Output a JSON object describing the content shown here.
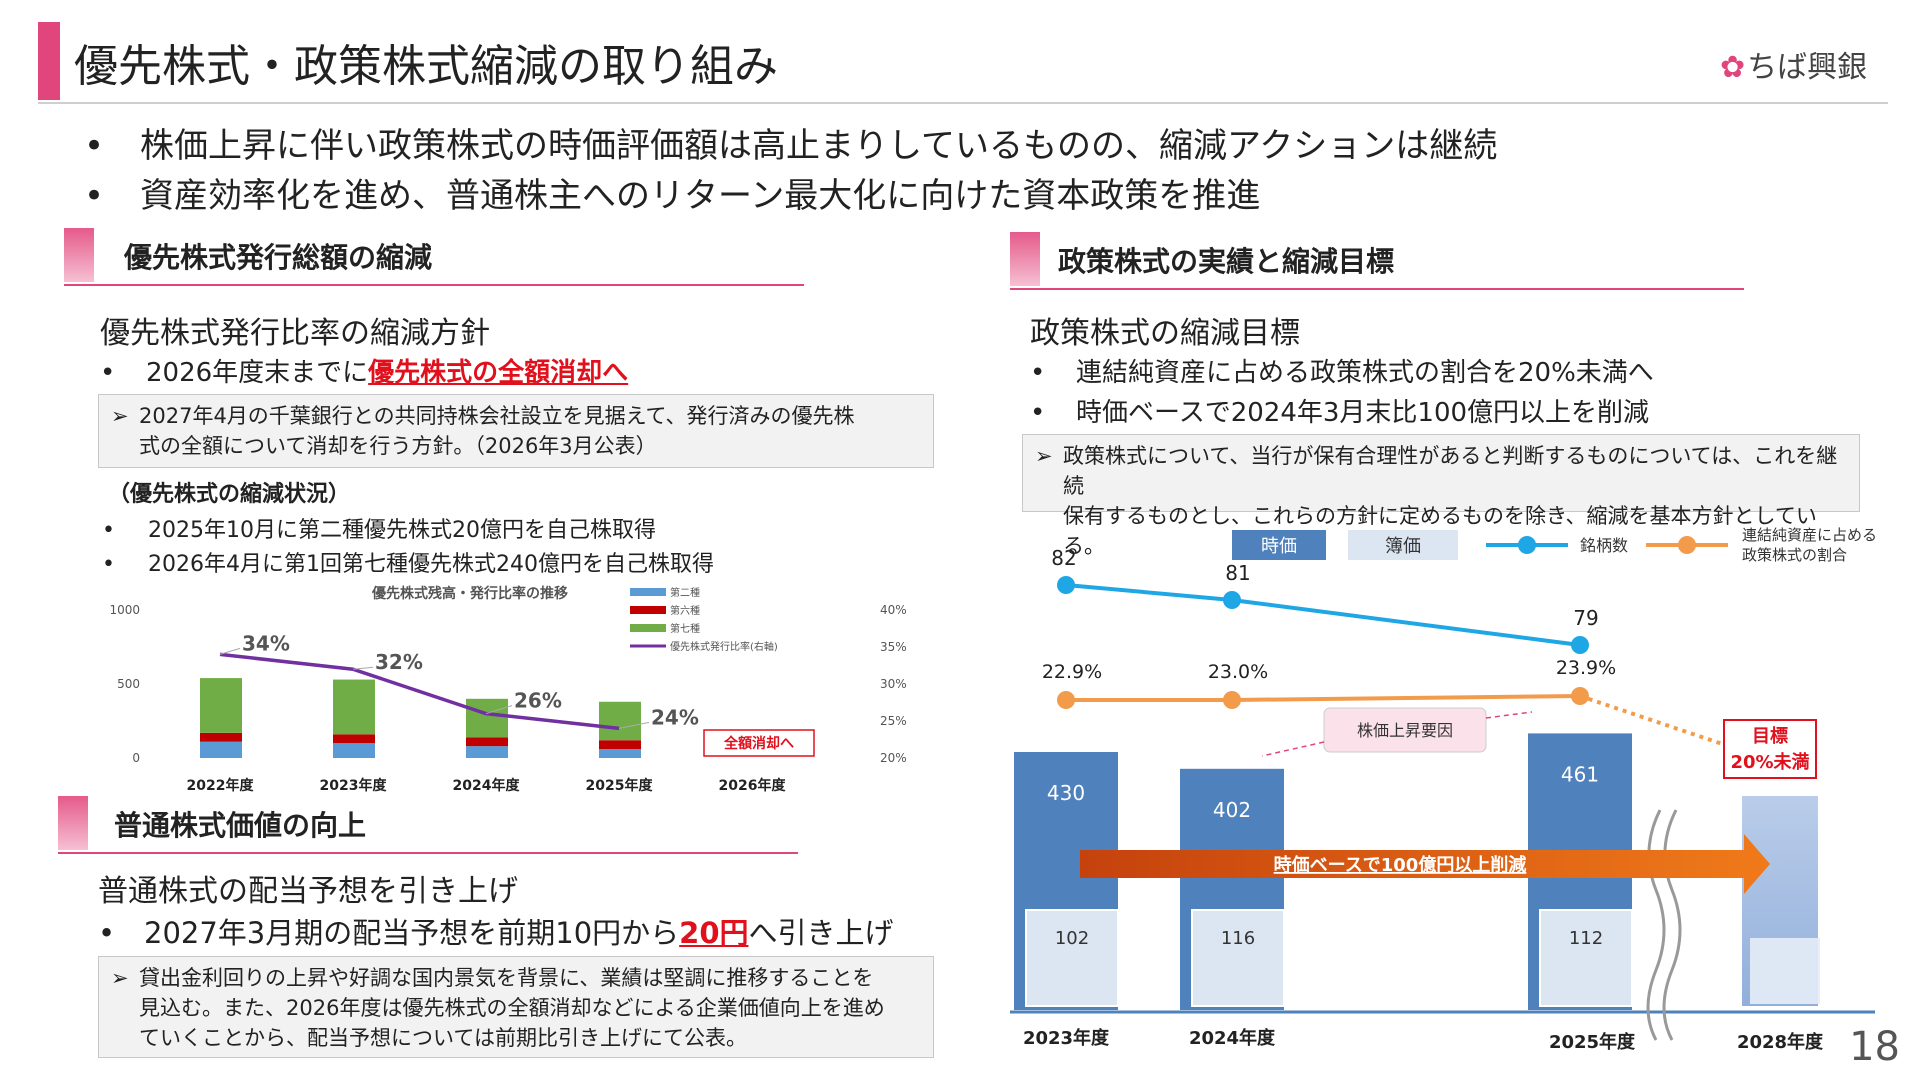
{
  "header": {
    "title": "優先株式・政策株式縮減の取り組み",
    "logo_text": "ちば興銀",
    "logo_icon": "flower-icon"
  },
  "top_bullets": [
    "株価上昇に伴い政策株式の時価評価額は高止まりしているものの、縮減アクションは継続",
    "資産効率化を進め、普通株主へのリターン最大化に向けた資本政策を推進"
  ],
  "left": {
    "section1": {
      "heading": "優先株式発行総額の縮減",
      "subheading": "優先株式発行比率の縮減方針",
      "bullet_prefix": "2026年度末までに",
      "bullet_highlight": "優先株式の全額消却へ",
      "note_line1": "2027年4月の千葉銀行との共同持株会社設立を見据えて、発行済みの優先株",
      "note_line2": "式の全額について消却を行う方針。（2026年3月公表）",
      "status_title": "（優先株式の縮減状況）",
      "status_items": [
        "2025年10月に第二種優先株式20億円を自己株取得",
        "2026年4月に第1回第七種優先株式240億円を自己株取得"
      ]
    },
    "section2": {
      "heading": "普通株式価値の向上",
      "subheading": "普通株式の配当予想を引き上げ",
      "bullet_prefix": "2027年3月期の配当予想を前期10円から",
      "bullet_highlight": "20円",
      "bullet_suffix": "へ引き上げ",
      "note_line1": "貸出金利回りの上昇や好調な国内景気を背景に、業績は堅調に推移することを",
      "note_line2": "見込む。また、2026年度は優先株式の全額消却などによる企業価値向上を進め",
      "note_line3": "ていくことから、配当予想については前期比引き上げにて公表。"
    }
  },
  "right": {
    "heading": "政策株式の実績と縮減目標",
    "subheading": "政策株式の縮減目標",
    "bullets": [
      "連結純資産に占める政策株式の割合を20%未満へ",
      "時価ベースで2024年3月末比100億円以上を削減"
    ],
    "note_line1": "政策株式について、当行が保有合理性があると判断するものについては、これを継続",
    "note_line2": "保有するものとし、これらの方針に定めるものを除き、縮減を基本方針としている。"
  },
  "chart_data": [
    {
      "type": "bar",
      "title": "優先株式残高・発行比率の推移",
      "categories": [
        "2022年度",
        "2023年度",
        "2024年度",
        "2025年度",
        "2026年度"
      ],
      "ylim": [
        0,
        1000
      ],
      "y_ticks": [
        "1000",
        "500",
        "0"
      ],
      "y2lim": [
        20,
        40
      ],
      "y2_ticks": [
        "40%",
        "35%",
        "30%",
        "25%",
        "20%"
      ],
      "series": [
        {
          "name": "第二種",
          "color": "#5b9bd5",
          "values": [
            110,
            100,
            80,
            60,
            0
          ]
        },
        {
          "name": "第六種",
          "color": "#c00000",
          "values": [
            60,
            60,
            60,
            60,
            0
          ]
        },
        {
          "name": "第七種",
          "color": "#70ad47",
          "values": [
            370,
            370,
            260,
            260,
            0
          ]
        },
        {
          "name": "優先株式発行比率(右軸)",
          "color": "#7030a0",
          "type": "line",
          "values": [
            34,
            32,
            26,
            24,
            null
          ]
        }
      ],
      "data_labels": [
        "34%",
        "32%",
        "26%",
        "24%"
      ],
      "annotation": "全額消却へ"
    },
    {
      "type": "bar",
      "categories": [
        "2023年度",
        "2024年度",
        "2025年度",
        "2028年度"
      ],
      "series": [
        {
          "name": "時価",
          "color": "#4f81bd",
          "values": [
            430,
            402,
            461,
            null
          ]
        },
        {
          "name": "簿価",
          "color": "#dce6f2",
          "values": [
            102,
            116,
            112,
            null
          ]
        },
        {
          "name": "銘柄数",
          "color": "#1ea7e4",
          "type": "line",
          "values": [
            82,
            81,
            79,
            null
          ]
        },
        {
          "name": "連結純資産に占める政策株式の割合",
          "color": "#f29b4b",
          "type": "line",
          "values": [
            22.9,
            23.0,
            23.9,
            20.0
          ]
        }
      ],
      "legend_group": "連結純資産に占める",
      "legend_group2": "政策株式の割合",
      "pct_labels": [
        "22.9%",
        "23.0%",
        "23.9%"
      ],
      "callout": "株価上昇要因",
      "arrow_label": "時価ベースで100億円以上削減",
      "target_line1": "目標",
      "target_line2": "20%未満"
    }
  ],
  "page_number": "18"
}
